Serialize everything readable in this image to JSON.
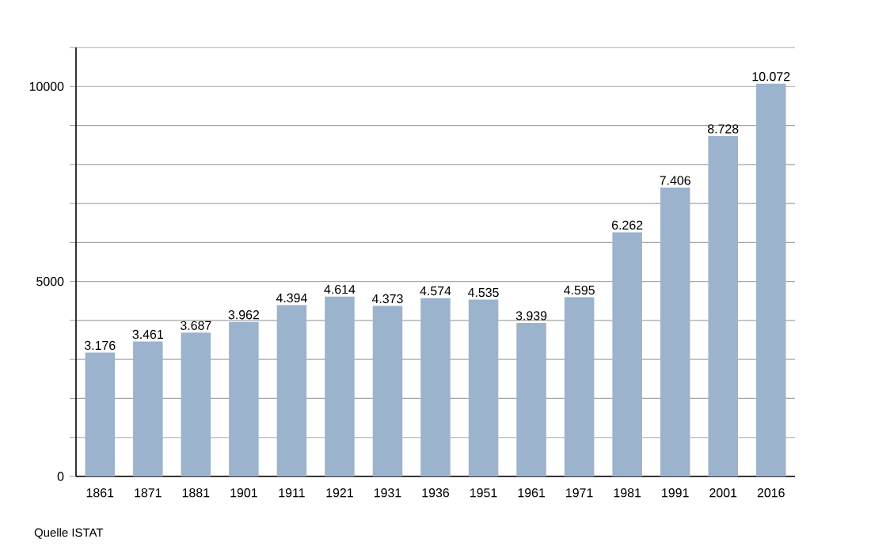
{
  "chart_data": {
    "type": "bar",
    "categories": [
      "1861",
      "1871",
      "1881",
      "1901",
      "1911",
      "1921",
      "1931",
      "1936",
      "1951",
      "1961",
      "1971",
      "1981",
      "1991",
      "2001",
      "2016"
    ],
    "values": [
      3176,
      3461,
      3687,
      3962,
      4394,
      4614,
      4373,
      4574,
      4535,
      3939,
      4595,
      6262,
      7406,
      8728,
      10072
    ],
    "value_labels": [
      "3.176",
      "3.461",
      "3.687",
      "3.962",
      "4.394",
      "4.614",
      "4.373",
      "4.574",
      "4.535",
      "3.939",
      "4.595",
      "6.262",
      "7.406",
      "8.728",
      "10.072"
    ],
    "color": "#9bb3cd",
    "ylim": [
      0,
      11000
    ],
    "yticks": [
      0,
      {
        "value": 1000,
        "label": null
      },
      {
        "value": 2000,
        "label": null
      },
      {
        "value": 3000,
        "label": null
      },
      {
        "value": 4000,
        "label": null
      },
      5000,
      {
        "value": 6000,
        "label": null
      },
      {
        "value": 7000,
        "label": null
      },
      {
        "value": 8000,
        "label": null
      },
      {
        "value": 9000,
        "label": null
      },
      10000,
      {
        "value": 11000,
        "label": null
      }
    ],
    "grid": "y",
    "annotations": [
      "Quelle ISTAT"
    ]
  }
}
